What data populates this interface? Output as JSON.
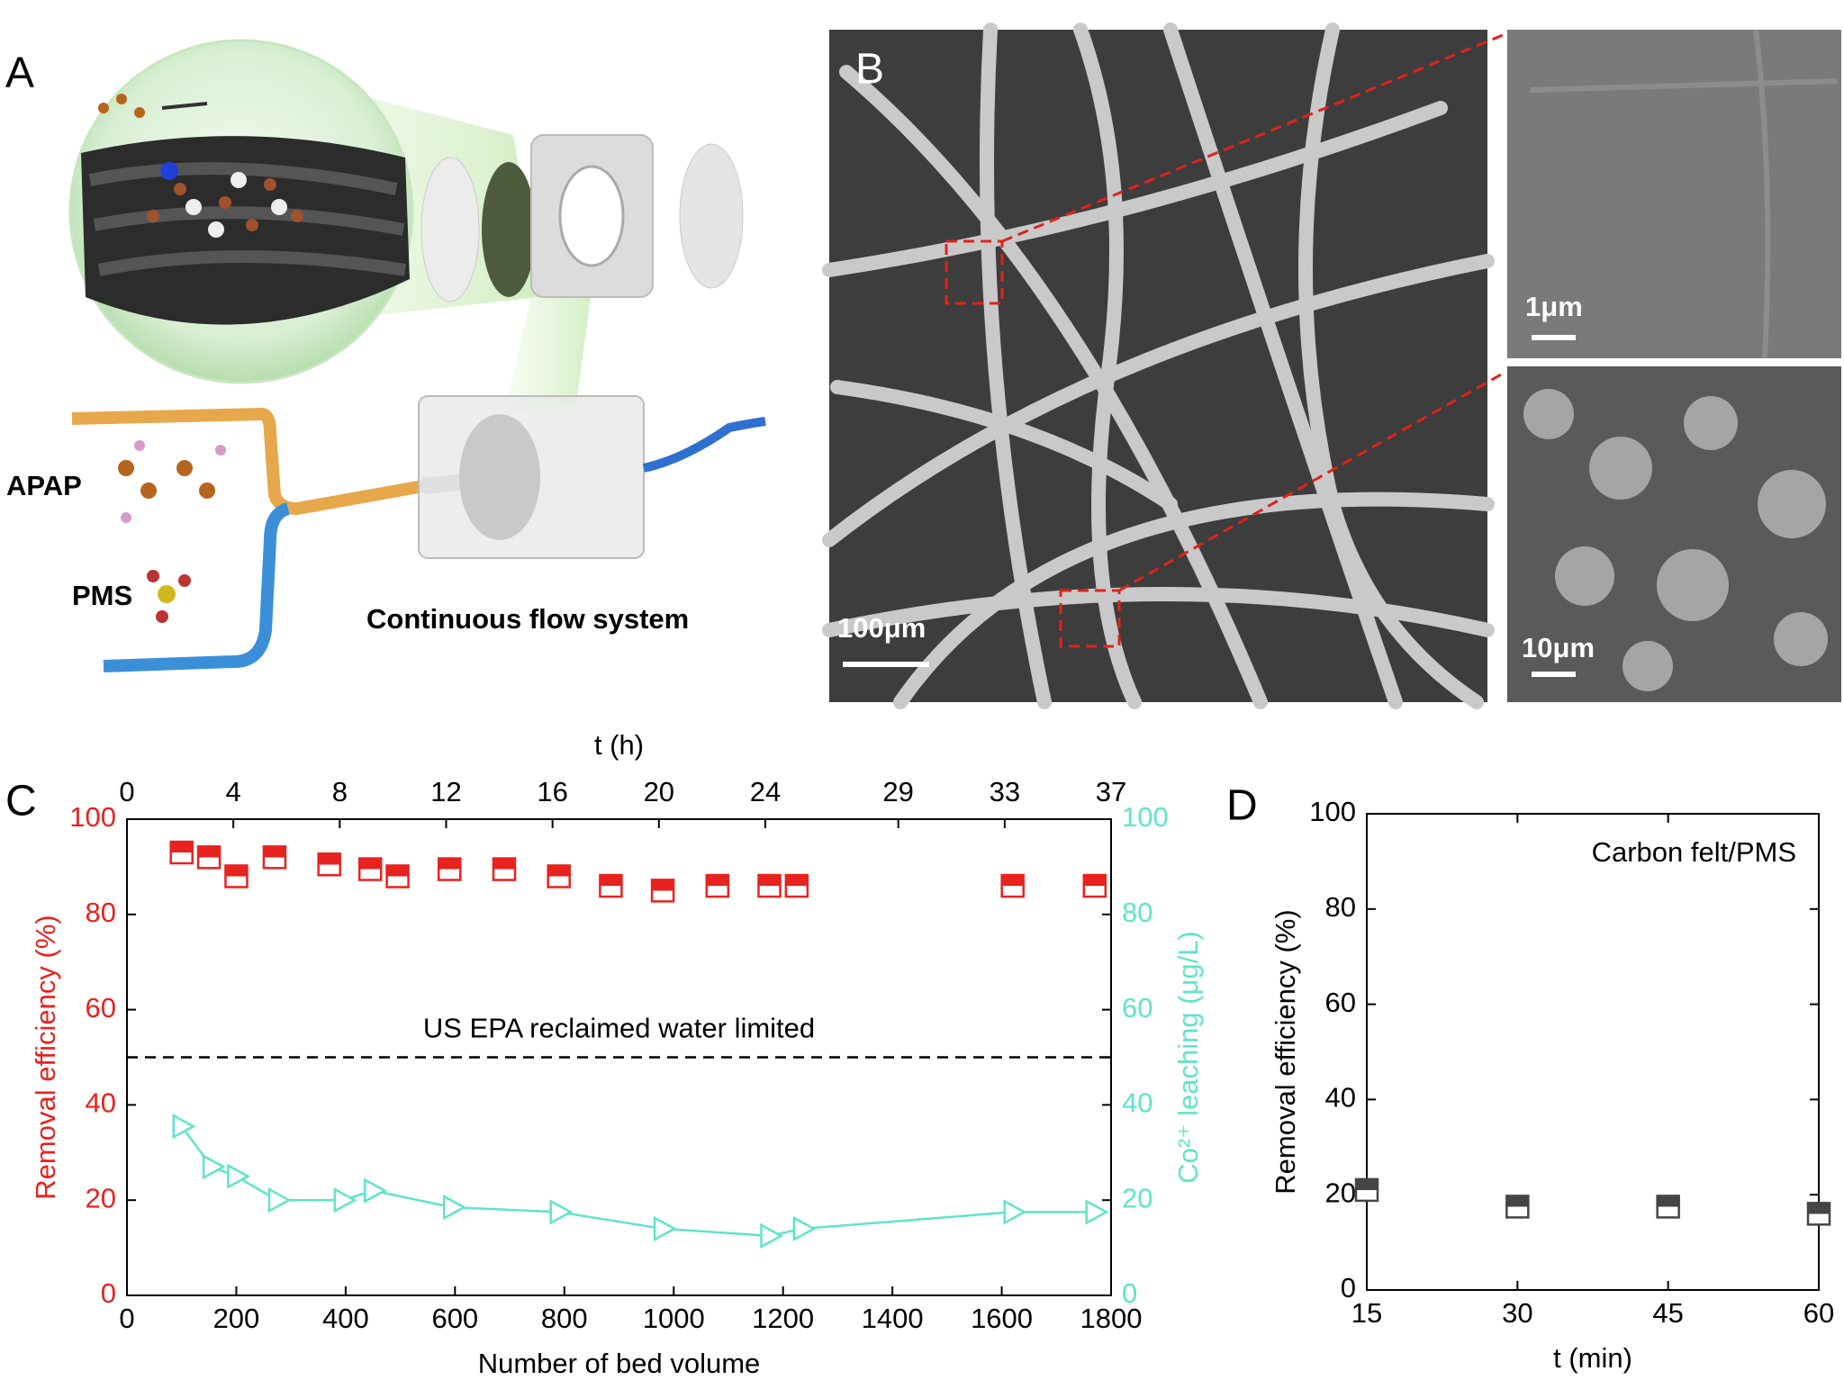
{
  "panel_labels": [
    "A",
    "B",
    "C",
    "D"
  ],
  "panel_a": {
    "molecules": [
      "APAP",
      "PMS"
    ],
    "caption": "Continuous flow system"
  },
  "panel_b": {
    "scale_bars": [
      "100μm",
      "1μm",
      "10μm"
    ]
  },
  "chart_data": [
    {
      "type": "scatter",
      "xlabel": "Number of bed volume",
      "ylabel": "Removal efficiency (%)",
      "y2label": "Co²⁺ leaching (μg/L)",
      "x2label": "t (h)",
      "xlim": [
        0,
        1800
      ],
      "xticks": [
        0,
        200,
        400,
        600,
        800,
        1000,
        1200,
        1400,
        1600,
        1800
      ],
      "x2lim": [
        0,
        37
      ],
      "x2ticks": [
        0,
        4,
        8,
        12,
        16,
        20,
        24,
        29,
        33,
        37
      ],
      "ylim": [
        0,
        100
      ],
      "yticks": [
        0,
        20,
        40,
        60,
        80,
        100
      ],
      "y2lim": [
        0,
        100
      ],
      "y2ticks": [
        0,
        20,
        40,
        60,
        80,
        100
      ],
      "hlines": [
        {
          "y": 50,
          "label": "US EPA reclaimed water limited"
        }
      ],
      "series": [
        {
          "color": "#e8221f",
          "marker": "half-square",
          "line": false,
          "x": [
            100,
            150,
            200,
            270,
            370,
            445,
            495,
            590,
            690,
            790,
            885,
            980,
            1080,
            1175,
            1225,
            1620,
            1770
          ],
          "values": [
            93,
            92,
            88,
            92,
            90.5,
            89.5,
            88,
            89.5,
            89.5,
            88,
            86,
            85,
            86,
            86,
            86,
            86,
            86
          ]
        },
        {
          "color": "#5fe3cc",
          "marker": "triangle",
          "line": true,
          "axis": "y2",
          "x": [
            100,
            155,
            200,
            275,
            395,
            450,
            595,
            790,
            980,
            1175,
            1235,
            1620,
            1770
          ],
          "values": [
            35.5,
            27,
            25,
            20,
            20,
            22,
            18.5,
            17.5,
            14,
            12.5,
            14,
            17.5,
            17.5
          ]
        }
      ]
    },
    {
      "type": "scatter",
      "xlabel": "t (min)",
      "ylabel": "Removal efficiency (%)",
      "annotation": "Carbon felt/PMS",
      "xlim": [
        15,
        60
      ],
      "xticks": [
        15,
        30,
        45,
        60
      ],
      "ylim": [
        0,
        100
      ],
      "yticks": [
        0,
        20,
        40,
        60,
        80,
        100
      ],
      "series": [
        {
          "color": "#454545",
          "marker": "half-square",
          "line": false,
          "x": [
            15,
            30,
            45,
            60
          ],
          "values": [
            21,
            17.5,
            17.5,
            16
          ]
        }
      ]
    }
  ]
}
